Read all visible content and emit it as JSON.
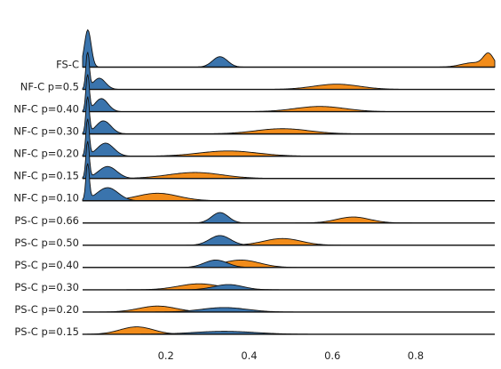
{
  "chart_data": {
    "type": "ridgeline",
    "title": "",
    "xlabel": "",
    "ylabel": "",
    "xlim": [
      0.0,
      0.99
    ],
    "x_ticks": [
      {
        "value": 0.2,
        "label": "0.2"
      },
      {
        "value": 0.4,
        "label": "0.4"
      },
      {
        "value": 0.6,
        "label": "0.6"
      },
      {
        "value": 0.8,
        "label": "0.8"
      }
    ],
    "grid": false,
    "legend": "none",
    "colors": {
      "blue": "#3a74ad",
      "orange": "#f28c1a",
      "outline": "#111111"
    },
    "rows": [
      {
        "label": "FS-C",
        "blue": [
          [
            0.0125,
            0.008,
            1.0
          ],
          [
            0.33,
            0.018,
            0.28
          ]
        ],
        "orange": [
          [
            0.975,
            0.012,
            0.32
          ],
          [
            0.94,
            0.03,
            0.12
          ]
        ]
      },
      {
        "label": "NF-C p=0.5",
        "blue": [
          [
            0.012,
            0.004,
            1.0
          ],
          [
            0.04,
            0.015,
            0.3
          ]
        ],
        "orange": [
          [
            0.61,
            0.055,
            0.14
          ]
        ]
      },
      {
        "label": "NF-C p=0.40",
        "blue": [
          [
            0.012,
            0.004,
            1.0
          ],
          [
            0.045,
            0.016,
            0.35
          ]
        ],
        "orange": [
          [
            0.57,
            0.06,
            0.14
          ]
        ]
      },
      {
        "label": "NF-C p=0.30",
        "blue": [
          [
            0.012,
            0.004,
            1.0
          ],
          [
            0.05,
            0.018,
            0.35
          ]
        ],
        "orange": [
          [
            0.48,
            0.065,
            0.14
          ]
        ]
      },
      {
        "label": "NF-C p=0.20",
        "blue": [
          [
            0.012,
            0.004,
            1.0
          ],
          [
            0.055,
            0.02,
            0.35
          ]
        ],
        "orange": [
          [
            0.35,
            0.07,
            0.14
          ]
        ]
      },
      {
        "label": "NF-C p=0.15",
        "blue": [
          [
            0.012,
            0.004,
            1.0
          ],
          [
            0.06,
            0.022,
            0.32
          ]
        ],
        "orange": [
          [
            0.27,
            0.065,
            0.16
          ]
        ]
      },
      {
        "label": "NF-C p=0.10",
        "blue": [
          [
            0.012,
            0.004,
            1.0
          ],
          [
            0.06,
            0.025,
            0.35
          ]
        ],
        "orange": [
          [
            0.18,
            0.05,
            0.2
          ]
        ]
      },
      {
        "label": "PS-C p=0.66",
        "blue": [
          [
            0.33,
            0.02,
            0.28
          ]
        ],
        "orange": [
          [
            0.65,
            0.04,
            0.16
          ]
        ]
      },
      {
        "label": "PS-C p=0.50",
        "blue": [
          [
            0.33,
            0.025,
            0.26
          ]
        ],
        "orange": [
          [
            0.48,
            0.045,
            0.18
          ]
        ]
      },
      {
        "label": "PS-C p=0.40",
        "blue": [
          [
            0.32,
            0.028,
            0.2
          ]
        ],
        "orange": [
          [
            0.38,
            0.045,
            0.2
          ]
        ]
      },
      {
        "label": "PS-C p=0.30",
        "blue": [
          [
            0.35,
            0.035,
            0.14
          ]
        ],
        "orange": [
          [
            0.28,
            0.05,
            0.16
          ]
        ]
      },
      {
        "label": "PS-C p=0.20",
        "blue": [
          [
            0.34,
            0.055,
            0.12
          ]
        ],
        "orange": [
          [
            0.18,
            0.045,
            0.16
          ]
        ]
      },
      {
        "label": "PS-C p=0.15",
        "blue": [
          [
            0.34,
            0.075,
            0.08
          ]
        ],
        "orange": [
          [
            0.13,
            0.04,
            0.2
          ]
        ]
      }
    ]
  }
}
